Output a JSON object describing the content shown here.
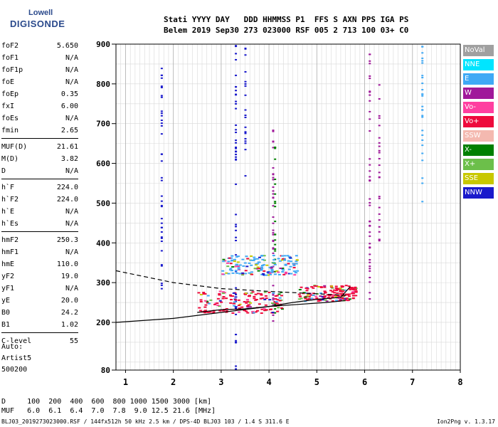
{
  "logo": {
    "line1": "Lowell",
    "line2": "DIGISONDE"
  },
  "header": {
    "line1": "Stati YYYY DAY   DDD HHMMSS P1  FFS S AXN PPS IGA PS",
    "line2": "Belem 2019 Sep30 273 023000 RSF 005 2 713 100 03+ C0"
  },
  "params": [
    {
      "name": "foF2",
      "value": "5.650"
    },
    {
      "name": "foF1",
      "value": "N/A"
    },
    {
      "name": "foF1p",
      "value": "N/A"
    },
    {
      "name": "foE",
      "value": "N/A"
    },
    {
      "name": "foEp",
      "value": "0.35"
    },
    {
      "name": "fxI",
      "value": "6.00"
    },
    {
      "name": "foEs",
      "value": "N/A"
    },
    {
      "name": "fmin",
      "value": "2.65"
    },
    {
      "sep": true
    },
    {
      "name": "MUF(D)",
      "value": "21.61"
    },
    {
      "name": "M(D)",
      "value": "3.82"
    },
    {
      "name": "D",
      "value": "N/A"
    },
    {
      "sep": true
    },
    {
      "name": "h`F",
      "value": "224.0"
    },
    {
      "name": "h`F2",
      "value": "224.0"
    },
    {
      "name": "h`E",
      "value": "N/A"
    },
    {
      "name": "h`Es",
      "value": "N/A"
    },
    {
      "sep": true
    },
    {
      "name": "hmF2",
      "value": "250.3"
    },
    {
      "name": "hmF1",
      "value": "N/A"
    },
    {
      "name": "hmE",
      "value": "110.0"
    },
    {
      "name": "yF2",
      "value": "19.0"
    },
    {
      "name": "yF1",
      "value": "N/A"
    },
    {
      "name": "yE",
      "value": "20.0"
    },
    {
      "name": "B0",
      "value": "24.2"
    },
    {
      "name": "B1",
      "value": "1.02"
    },
    {
      "sep": true
    },
    {
      "name": "C-level",
      "value": "55"
    }
  ],
  "auto": {
    "line1": "Auto:",
    "line2": "Artist5",
    "line3": "500200"
  },
  "legend": [
    {
      "label": "NoVal",
      "color": "#a0a0a0"
    },
    {
      "label": "NNE",
      "color": "#00e5ff"
    },
    {
      "label": "E",
      "color": "#3fa9f5"
    },
    {
      "label": "W",
      "color": "#a0189a"
    },
    {
      "label": "Vo-",
      "color": "#ff3fa0"
    },
    {
      "label": "Vo+",
      "color": "#ee0a3c"
    },
    {
      "label": "SSW",
      "color": "#f4b9b0"
    },
    {
      "label": "X-",
      "color": "#008000"
    },
    {
      "label": "X+",
      "color": "#6cbf4a"
    },
    {
      "label": "SSE",
      "color": "#c8c800"
    },
    {
      "label": "NNW",
      "color": "#1a1acc"
    }
  ],
  "footer": {
    "line1": "D     100  200  400  600  800 1000 1500 3000 [km]",
    "line2": "MUF   6.0  6.1  6.4  7.0  7.8  9.0 12.5 21.6 [MHz]",
    "line3": "BLJ03_2019273023000.RSF / 144fx512h 50 kHz 2.5 km / DPS-4D BLJ03 103 / 1.4 S 311.6 E",
    "version": "Ion2Png v. 1.3.17"
  },
  "chart_data": {
    "type": "scatter",
    "xlim": [
      0.8,
      8.0
    ],
    "ylim": [
      80,
      900
    ],
    "xticks": [
      1,
      2,
      3,
      4,
      5,
      6,
      7,
      8
    ],
    "yticks": [
      80,
      200,
      300,
      400,
      500,
      600,
      700,
      800,
      900
    ],
    "traces": [
      {
        "name": "virtual_height_trace",
        "style": "solid",
        "points": [
          [
            0.8,
            200
          ],
          [
            2.0,
            210
          ],
          [
            3.0,
            225
          ],
          [
            4.0,
            240
          ],
          [
            4.6,
            245
          ],
          [
            5.2,
            250
          ],
          [
            5.6,
            255
          ]
        ]
      },
      {
        "name": "profile",
        "style": "solid",
        "points": [
          [
            2.5,
            225
          ],
          [
            3.0,
            232
          ],
          [
            3.5,
            234
          ],
          [
            4.0,
            240
          ],
          [
            4.5,
            250
          ],
          [
            5.0,
            258
          ],
          [
            5.5,
            263
          ],
          [
            5.7,
            290
          ]
        ]
      },
      {
        "name": "extrapolation",
        "style": "dashed",
        "points": [
          [
            0.8,
            330
          ],
          [
            2.0,
            300
          ],
          [
            3.0,
            285
          ],
          [
            4.0,
            278
          ],
          [
            5.0,
            272
          ],
          [
            5.65,
            268
          ]
        ]
      }
    ],
    "echo_columns": [
      {
        "x": 3.3,
        "y_from": 80,
        "y_to": 900,
        "color": "#1a1acc"
      },
      {
        "x": 3.5,
        "y_from": 560,
        "y_to": 900,
        "color": "#1a1acc"
      },
      {
        "x": 4.08,
        "y_from": 80,
        "y_to": 700,
        "color": "#a0189a"
      },
      {
        "x": 4.12,
        "y_from": 200,
        "y_to": 650,
        "color": "#008000"
      },
      {
        "x": 6.1,
        "y_from": 250,
        "y_to": 900,
        "color": "#a0189a"
      },
      {
        "x": 6.3,
        "y_from": 400,
        "y_to": 800,
        "color": "#a0189a"
      },
      {
        "x": 7.2,
        "y_from": 450,
        "y_to": 900,
        "color": "#3fa9f5"
      },
      {
        "x": 1.75,
        "y_from": 280,
        "y_to": 860,
        "color": "#1a1acc"
      }
    ],
    "echo_clusters": [
      {
        "x_from": 2.5,
        "x_to": 4.3,
        "y_from": 225,
        "y_to": 280,
        "color": "#ee0a3c"
      },
      {
        "x_from": 4.6,
        "x_to": 5.8,
        "y_from": 255,
        "y_to": 295,
        "color": "#ee0a3c"
      },
      {
        "x_from": 3.0,
        "x_to": 4.6,
        "y_from": 320,
        "y_to": 370,
        "color": "#3fa9f5"
      }
    ]
  }
}
